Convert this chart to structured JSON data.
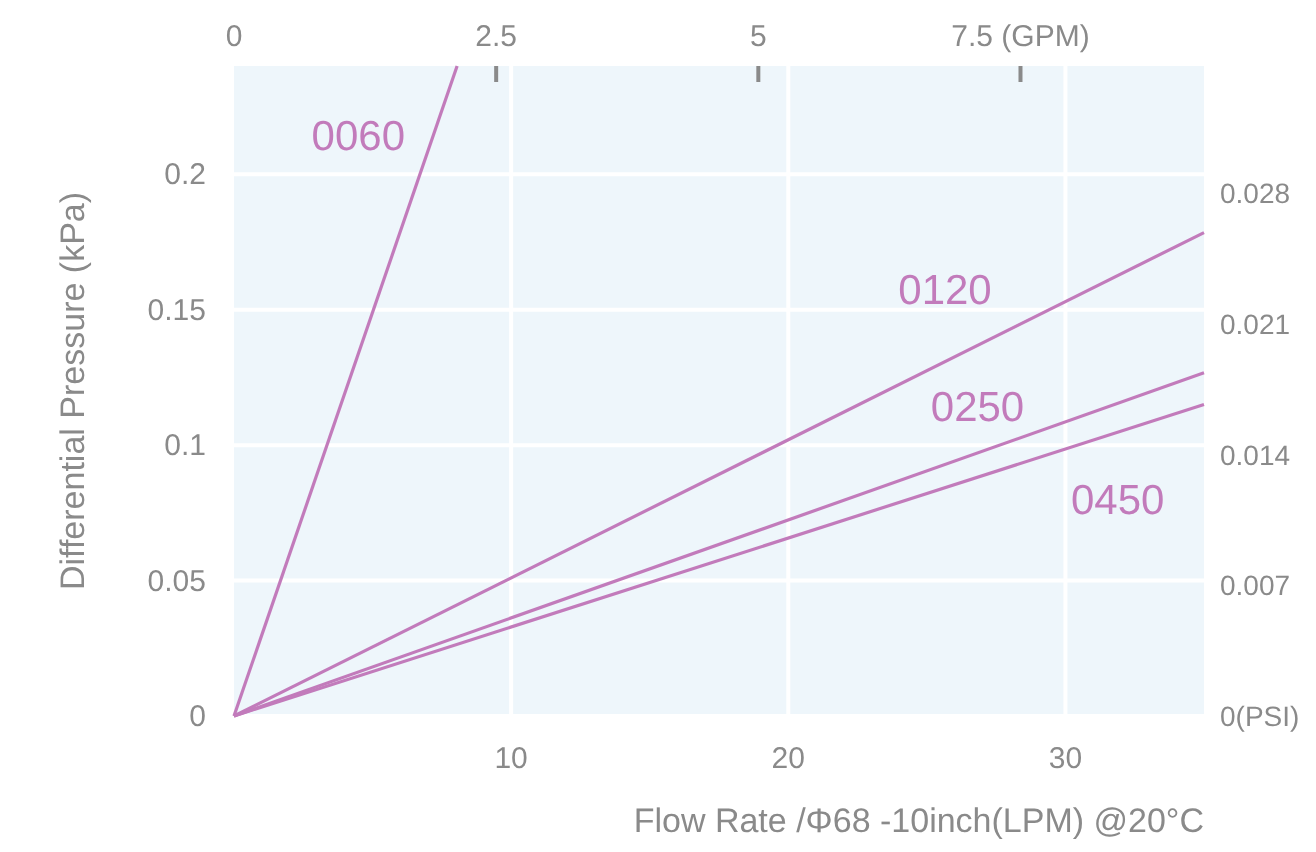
{
  "chart_data": {
    "type": "line",
    "xlabel": "Flow Rate /Φ68 -10inch(LPM) @20°C",
    "ylabel": "Differential Pressure (kPa)",
    "xlim": [
      0,
      35
    ],
    "xticks": [
      10,
      20,
      30
    ],
    "ylim": [
      0,
      0.24
    ],
    "yticks": [
      0,
      0.05,
      0.1,
      0.15,
      0.2
    ],
    "y2lim": [
      0,
      0.0348
    ],
    "y2ticks": [
      {
        "value": 0,
        "label": "0(PSI)"
      },
      0.007,
      0.014,
      0.021,
      0.028
    ],
    "x2lim": [
      0,
      9.25
    ],
    "x2ticks": [
      0,
      2.5,
      5,
      {
        "value": 7.5,
        "label": "7.5 (GPM)"
      }
    ],
    "grid": true,
    "marker": "none",
    "line_style": "solid",
    "series": [
      {
        "name": "0060",
        "color": "#c27bbb",
        "x": [
          0,
          8.05
        ],
        "values": [
          0,
          0.24
        ]
      },
      {
        "name": "0120",
        "color": "#c27bbb",
        "x": [
          0,
          35
        ],
        "values": [
          0,
          0.1785
        ]
      },
      {
        "name": "0250",
        "color": "#c27bbb",
        "x": [
          0,
          35
        ],
        "values": [
          0,
          0.1267
        ]
      },
      {
        "name": "0450",
        "color": "#c27bbb",
        "x": [
          0,
          35
        ],
        "values": [
          0,
          0.115
        ]
      }
    ]
  }
}
